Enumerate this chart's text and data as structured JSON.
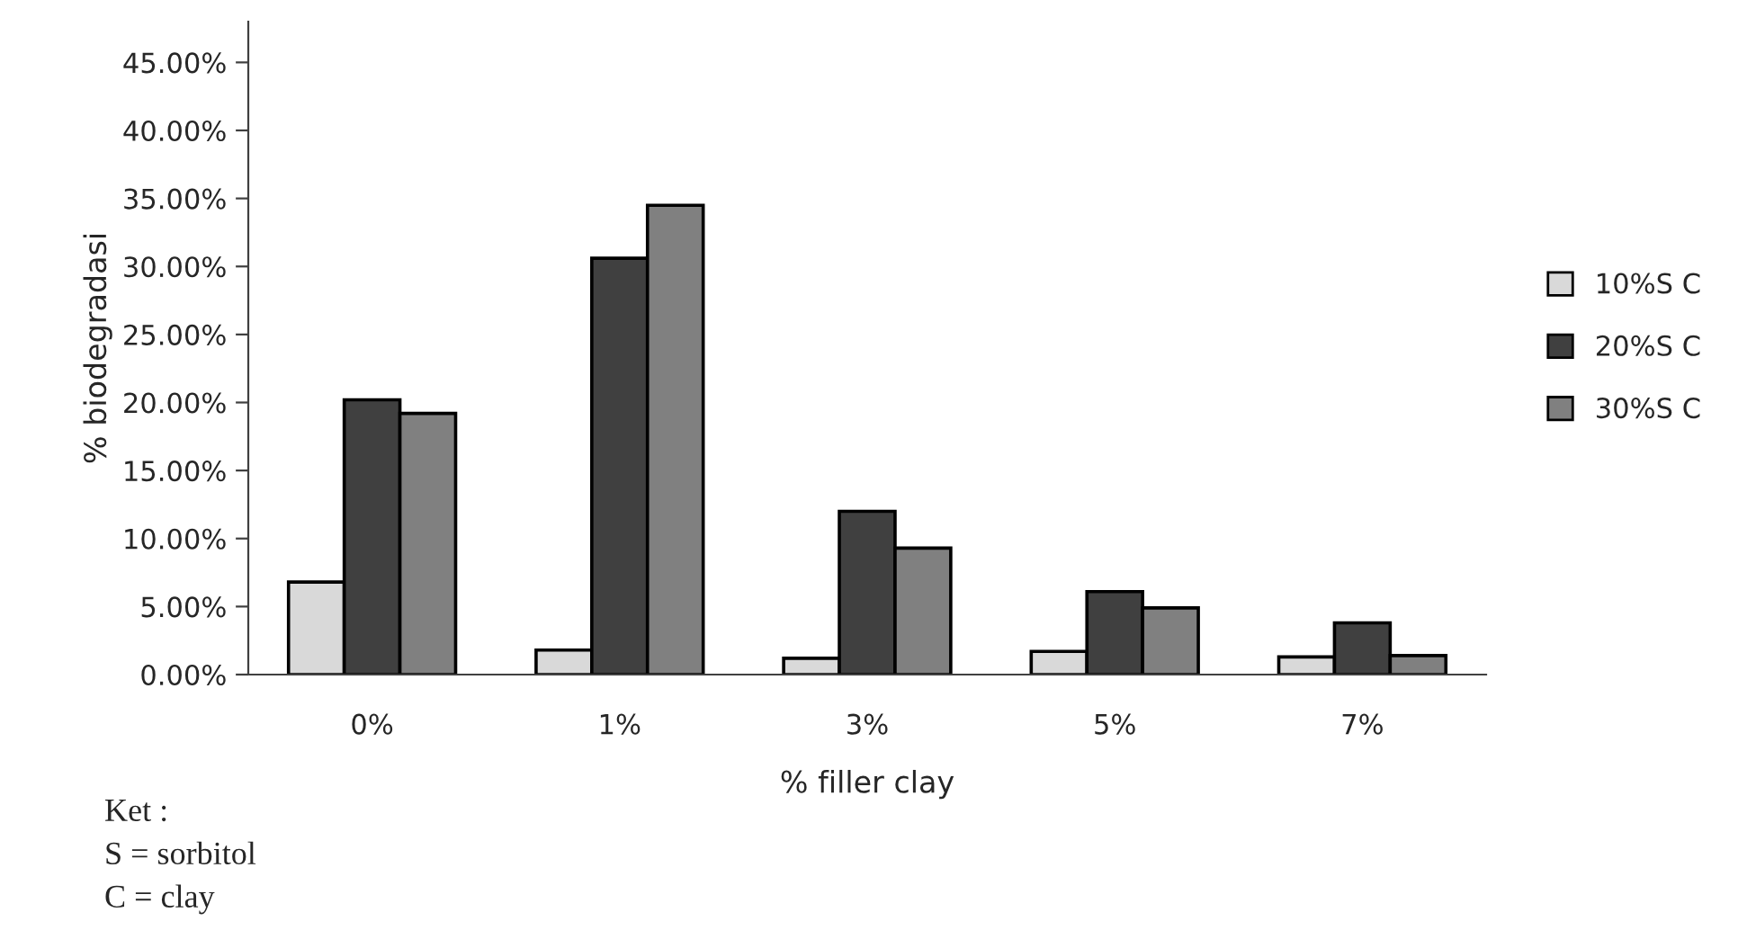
{
  "chart_data": {
    "type": "bar",
    "xlabel": "% filler clay",
    "ylabel": "% biodegradasi",
    "categories": [
      "0%",
      "1%",
      "3%",
      "5%",
      "7%"
    ],
    "series": [
      {
        "name": "10%S C",
        "color": "#d9d9d9",
        "values": [
          6.8,
          1.8,
          1.2,
          1.7,
          1.3
        ]
      },
      {
        "name": "20%S C",
        "color": "#404040",
        "values": [
          20.2,
          30.6,
          12,
          6.1,
          3.8
        ]
      },
      {
        "name": "30%S C",
        "color": "#808080",
        "values": [
          19.2,
          34.5,
          9.3,
          4.9,
          1.4
        ]
      }
    ],
    "ylim": [
      0,
      48
    ],
    "yticks": [
      {
        "value": 0,
        "label": "0.00%"
      },
      {
        "value": 5,
        "label": "5.00%"
      },
      {
        "value": 10,
        "label": "10.00%"
      },
      {
        "value": 15,
        "label": "15.00%"
      },
      {
        "value": 20,
        "label": "20.00%"
      },
      {
        "value": 25,
        "label": "25.00%"
      },
      {
        "value": 30,
        "label": "30.00%"
      },
      {
        "value": 35,
        "label": "35.00%"
      },
      {
        "value": 40,
        "label": "40.00%"
      },
      {
        "value": 45,
        "label": "45.00%"
      }
    ],
    "grid": false,
    "legend": "right",
    "annotations": [
      "Ket :",
      "S = sorbitol",
      "C = clay"
    ]
  }
}
